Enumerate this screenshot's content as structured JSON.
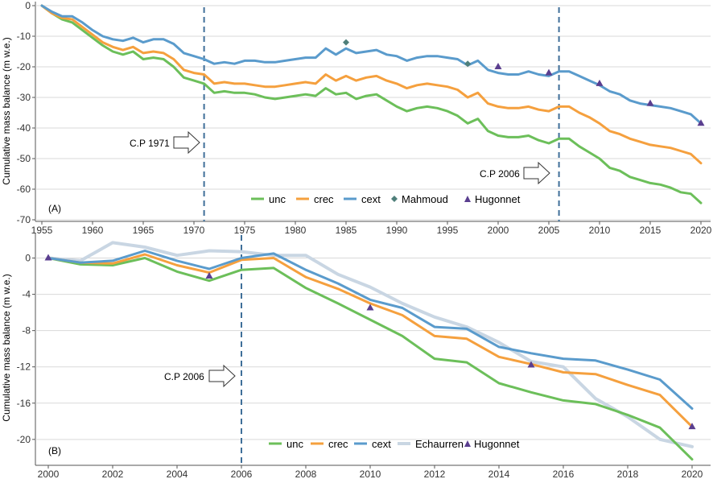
{
  "colors": {
    "unc": "#6cbf5a",
    "crec": "#f5a03e",
    "cext": "#5a9bcc",
    "Mahmoud": "#4f7f7a",
    "Hugonnet": "#5a3e8f",
    "Echaurren": "#c9d6e3",
    "grid": "#d9d9d9",
    "axis": "#555555",
    "vline": "#3f6f99"
  },
  "chart_data": [
    {
      "id": "A",
      "type": "line",
      "panel_label": "(A)",
      "ylabel": "Cumulative mass balance  (m w.e.)",
      "xlim": [
        1955,
        2020
      ],
      "ylim": [
        -70,
        0
      ],
      "xticks": [
        "1955",
        "1960",
        "1965",
        "1970",
        "1975",
        "1980",
        "1985",
        "1990",
        "1995",
        "2000",
        "2005",
        "2010",
        "2015",
        "2020"
      ],
      "yticks": [
        "0",
        "-10",
        "-20",
        "-30",
        "-40",
        "-50",
        "-60",
        "-70"
      ],
      "x": [
        1955,
        1956,
        1957,
        1958,
        1959,
        1960,
        1961,
        1962,
        1963,
        1964,
        1965,
        1966,
        1967,
        1968,
        1969,
        1970,
        1971,
        1972,
        1973,
        1974,
        1975,
        1976,
        1977,
        1978,
        1979,
        1980,
        1981,
        1982,
        1983,
        1984,
        1985,
        1986,
        1987,
        1988,
        1989,
        1990,
        1991,
        1992,
        1993,
        1994,
        1995,
        1996,
        1997,
        1998,
        1999,
        2000,
        2001,
        2002,
        2003,
        2004,
        2005,
        2006,
        2007,
        2008,
        2009,
        2010,
        2011,
        2012,
        2013,
        2014,
        2015,
        2016,
        2017,
        2018,
        2019,
        2020
      ],
      "series": [
        {
          "name": "unc",
          "values": [
            0,
            -2.5,
            -4.5,
            -5.5,
            -8,
            -10.5,
            -13,
            -15,
            -16,
            -15,
            -17.5,
            -17,
            -17.5,
            -20,
            -23.5,
            -24.5,
            -25.5,
            -28.5,
            -28,
            -28.5,
            -28.5,
            -29,
            -30,
            -30.5,
            -30,
            -29.5,
            -29,
            -29.5,
            -27,
            -29,
            -28.5,
            -30.5,
            -29.5,
            -29,
            -31,
            -33,
            -34.5,
            -33.5,
            -33,
            -33.5,
            -34.5,
            -36,
            -38.5,
            -37,
            -41,
            -42.5,
            -43,
            -43,
            -42.5,
            -44,
            -45,
            -43.5,
            -43.5,
            -46,
            -48,
            -50,
            -53,
            -54,
            -56,
            -57,
            -58,
            -58.5,
            -59.5,
            -61,
            -61.5,
            -64.5
          ]
        },
        {
          "name": "crec",
          "values": [
            0,
            -2.5,
            -4,
            -4.5,
            -7,
            -9.5,
            -12,
            -13.5,
            -14.5,
            -13.5,
            -15.5,
            -15,
            -15.5,
            -17.5,
            -21,
            -22,
            -22.5,
            -25.5,
            -25,
            -25.5,
            -25.5,
            -26,
            -26.5,
            -26.5,
            -26,
            -25.5,
            -25,
            -25.5,
            -22.5,
            -24.5,
            -23,
            -24.5,
            -23.5,
            -23,
            -24.5,
            -25.5,
            -27,
            -26,
            -25.5,
            -26,
            -26.5,
            -27.5,
            -30,
            -28.5,
            -32,
            -33,
            -33.5,
            -33.5,
            -33,
            -34,
            -34.5,
            -33,
            -33,
            -35,
            -36.5,
            -38.5,
            -41,
            -42,
            -43.5,
            -44.5,
            -45.5,
            -46,
            -46.5,
            -47.5,
            -48.5,
            -51.5
          ]
        },
        {
          "name": "cext",
          "values": [
            0,
            -2,
            -3.5,
            -3.5,
            -5.5,
            -8,
            -10,
            -11,
            -11.5,
            -10.5,
            -12,
            -11,
            -11,
            -12.5,
            -15.5,
            -16.5,
            -17.5,
            -19,
            -18.5,
            -19,
            -18,
            -18,
            -18.5,
            -18.5,
            -18,
            -17.5,
            -17,
            -17,
            -14,
            -16,
            -14,
            -15.5,
            -15,
            -14.5,
            -16,
            -16.5,
            -18,
            -17,
            -16.5,
            -16.5,
            -17,
            -17.5,
            -19.5,
            -18,
            -21,
            -22,
            -22.5,
            -22.5,
            -21.5,
            -22.5,
            -23,
            -21.5,
            -21.5,
            -23,
            -24.5,
            -26,
            -28,
            -29,
            -31,
            -32,
            -32.5,
            -33,
            -33.5,
            -34.5,
            -35.5,
            -38.5
          ]
        }
      ],
      "points": [
        {
          "name": "Mahmoud",
          "x": [
            1985,
            1997
          ],
          "y": [
            -12,
            -19
          ]
        },
        {
          "name": "Hugonnet",
          "x": [
            2000,
            2005,
            2010,
            2015,
            2020
          ],
          "y": [
            -20,
            -22,
            -25.5,
            -32,
            -38.5
          ]
        }
      ],
      "vlines": [
        1971,
        2006
      ],
      "annotations": [
        {
          "text": "C.P 1971",
          "x": 1971
        },
        {
          "text": "C.P 2006",
          "x": 2006
        }
      ],
      "legend": {
        "position": "bottom-center",
        "entries": [
          "unc",
          "crec",
          "cext",
          "Mahmoud",
          "Hugonnet"
        ]
      }
    },
    {
      "id": "B",
      "type": "line",
      "panel_label": "(B)",
      "ylabel": "Cumulative mass balance  (m w.e.)",
      "xlim": [
        2000,
        2020
      ],
      "ylim": [
        -22.5,
        2
      ],
      "xticks": [
        "2000",
        "2002",
        "2004",
        "2006",
        "2008",
        "2010",
        "2012",
        "2014",
        "2016",
        "2018",
        "2020"
      ],
      "yticks": [
        "0",
        "-4",
        "-8",
        "-12",
        "-16",
        "-20"
      ],
      "x": [
        2000,
        2001,
        2002,
        2003,
        2004,
        2005,
        2006,
        2007,
        2008,
        2009,
        2010,
        2011,
        2012,
        2013,
        2014,
        2015,
        2016,
        2017,
        2018,
        2019,
        2020
      ],
      "series": [
        {
          "name": "unc",
          "values": [
            0,
            -0.7,
            -0.8,
            0,
            -1.5,
            -2.5,
            -1.3,
            -1.1,
            -3.3,
            -5,
            -6.8,
            -8.6,
            -11.1,
            -11.5,
            -13.8,
            -14.8,
            -15.7,
            -16.1,
            -17.3,
            -18.7,
            -22.2
          ]
        },
        {
          "name": "crec",
          "values": [
            0,
            -0.5,
            -0.6,
            0.4,
            -0.8,
            -1.6,
            -0.2,
            0,
            -2.1,
            -3.4,
            -5,
            -6.3,
            -8.6,
            -8.9,
            -10.9,
            -11.7,
            -12.6,
            -12.8,
            -14,
            -15.1,
            -18.6
          ]
        },
        {
          "name": "cext",
          "values": [
            0,
            -0.5,
            -0.3,
            0.8,
            -0.3,
            -1.2,
            0,
            0.5,
            -1.3,
            -2.8,
            -4.6,
            -5.5,
            -7.6,
            -7.8,
            -9.8,
            -10.5,
            -11.1,
            -11.3,
            -12.3,
            -13.4,
            -16.6
          ]
        },
        {
          "name": "Echaurren",
          "values": [
            0,
            -0.3,
            1.7,
            1.2,
            0.3,
            0.8,
            0.7,
            0.3,
            0.3,
            -1.8,
            -3.2,
            -5,
            -6.5,
            -7.6,
            -9.3,
            -11.4,
            -12,
            -15.5,
            -17.5,
            -20,
            -20.8
          ]
        }
      ],
      "points": [
        {
          "name": "Hugonnet",
          "x": [
            2000,
            2005,
            2010,
            2015,
            2020
          ],
          "y": [
            0,
            -2,
            -5.5,
            -11.8,
            -18.6
          ]
        }
      ],
      "vlines": [
        2006
      ],
      "annotations": [
        {
          "text": "C.P 2006",
          "x": 2006
        }
      ],
      "legend": {
        "position": "bottom-center",
        "entries": [
          "unc",
          "crec",
          "cext",
          "Echaurren",
          "Hugonnet"
        ]
      }
    }
  ]
}
